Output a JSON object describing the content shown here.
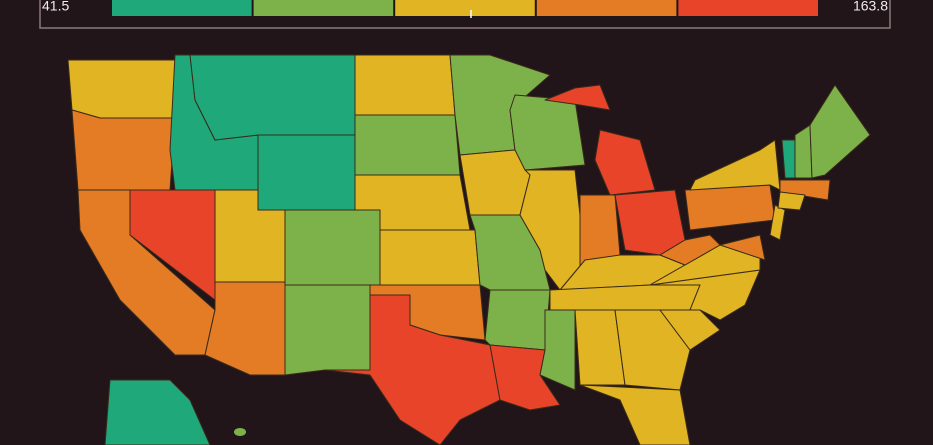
{
  "legend": {
    "min_label": "41.5",
    "max_label": "163.8",
    "colors": [
      "#1fa97a",
      "#7db24a",
      "#e0b422",
      "#e47c26",
      "#e8442a"
    ]
  }
}
